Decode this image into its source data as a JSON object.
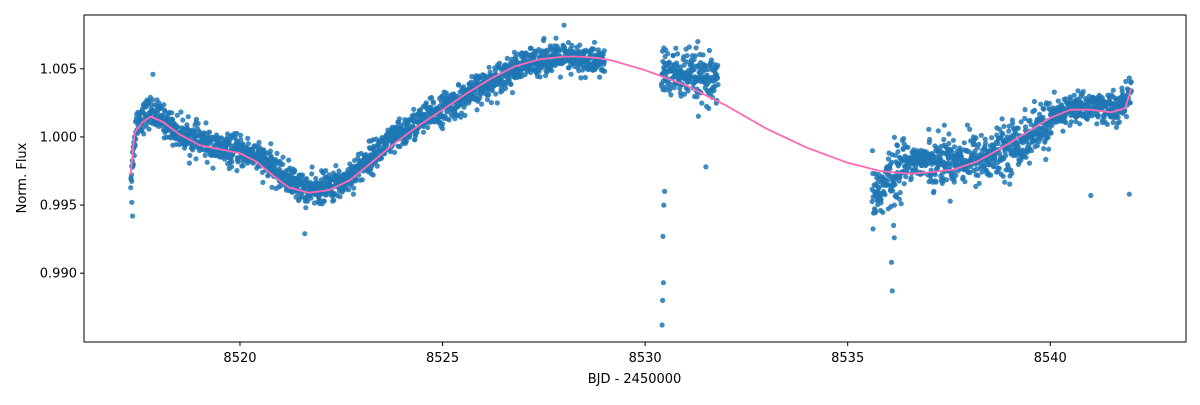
{
  "chart_data": {
    "type": "scatter",
    "title": "",
    "xlabel": "BJD - 2450000",
    "ylabel": "Norm. Flux",
    "xlim": [
      8516.15,
      8543.35
    ],
    "ylim": [
      0.98495,
      1.00895
    ],
    "xticks": [
      8520,
      8525,
      8530,
      8535,
      8540
    ],
    "xtick_labels": [
      "8520",
      "8525",
      "8530",
      "8535",
      "8540"
    ],
    "yticks": [
      0.99,
      0.995,
      1.0,
      1.005
    ],
    "ytick_labels": [
      "0.990",
      "0.995",
      "1.000",
      "1.005"
    ],
    "grid": false,
    "colors": {
      "points": "#1f77b4",
      "model": "#ff69b4",
      "axes": "#000000",
      "background": "#ffffff"
    },
    "series": [
      {
        "kind": "scatter",
        "x_ranges": [
          [
            8517.3,
            8529.0
          ],
          [
            8530.4,
            8531.8
          ],
          [
            8535.6,
            8542.0
          ]
        ],
        "trend": {
          "x": [
            8517.3,
            8517.45,
            8517.8,
            8518.5,
            8519.5,
            8520.3,
            8521.0,
            8521.7,
            8522.5,
            8523.5,
            8524.5,
            8525.5,
            8526.5,
            8527.5,
            8528.3,
            8529.0,
            8530.4,
            8531.0,
            8531.8,
            8535.6,
            8536.5,
            8537.3,
            8538.5,
            8539.5,
            8540.4,
            8541.0,
            8541.7,
            8542.0
          ],
          "y": [
            0.9968,
            1.0012,
            1.0019,
            1.0003,
            0.9991,
            0.9988,
            0.9973,
            0.996,
            0.9966,
            0.9992,
            1.0013,
            1.0028,
            1.0046,
            1.0058,
            1.0057,
            1.0055,
            1.0048,
            1.0045,
            1.0038,
            0.9955,
            0.9983,
            0.9983,
            0.9985,
            1.0,
            1.002,
            1.0023,
            1.002,
            1.0034
          ]
        },
        "outliers": [
          [
            8530.42,
            0.9862
          ],
          [
            8530.43,
            0.988
          ],
          [
            8530.45,
            0.9893
          ],
          [
            8530.44,
            0.9927
          ],
          [
            8530.46,
            0.995
          ],
          [
            8530.48,
            0.996
          ],
          [
            8536.1,
            0.9887
          ],
          [
            8536.08,
            0.9908
          ],
          [
            8536.15,
            0.9926
          ],
          [
            8521.6,
            0.9929
          ],
          [
            8517.35,
            0.9942
          ],
          [
            8517.33,
            0.9952
          ],
          [
            8517.85,
            1.0046
          ],
          [
            8531.3,
            1.007
          ],
          [
            8528.0,
            1.0082
          ],
          [
            8541.0,
            0.9957
          ],
          [
            8541.95,
            0.9958
          ],
          [
            8531.5,
            0.9978
          ]
        ]
      },
      {
        "kind": "line",
        "x": [
          8517.3,
          8517.4,
          8517.6,
          8517.8,
          8518.1,
          8518.5,
          8519.0,
          8519.5,
          8520.0,
          8520.4,
          8520.8,
          8521.2,
          8521.7,
          8522.2,
          8522.7,
          8523.2,
          8523.8,
          8524.4,
          8525.0,
          8525.6,
          8526.2,
          8526.8,
          8527.4,
          8528.0,
          8528.4,
          8528.8,
          8529.2,
          8530.0,
          8531.0,
          8532.0,
          8533.0,
          8534.0,
          8535.0,
          8535.8,
          8536.5,
          8537.0,
          8537.6,
          8538.2,
          8538.8,
          8539.4,
          8540.0,
          8540.5,
          8541.0,
          8541.5,
          8541.85,
          8542.0
        ],
        "y": [
          0.9972,
          1.0003,
          1.0011,
          1.0015,
          1.0011,
          1.0002,
          0.9994,
          0.9991,
          0.9988,
          0.9982,
          0.9972,
          0.9963,
          0.9959,
          0.9961,
          0.9968,
          0.998,
          0.9995,
          1.0008,
          1.002,
          1.0032,
          1.0043,
          1.0052,
          1.0057,
          1.0059,
          1.0059,
          1.0058,
          1.0056,
          1.0049,
          1.0038,
          1.0023,
          1.0006,
          0.9992,
          0.9981,
          0.9975,
          0.9973,
          0.9974,
          0.9976,
          0.9982,
          0.9992,
          1.0003,
          1.0014,
          1.002,
          1.002,
          1.0018,
          1.0021,
          1.0036
        ]
      }
    ]
  }
}
